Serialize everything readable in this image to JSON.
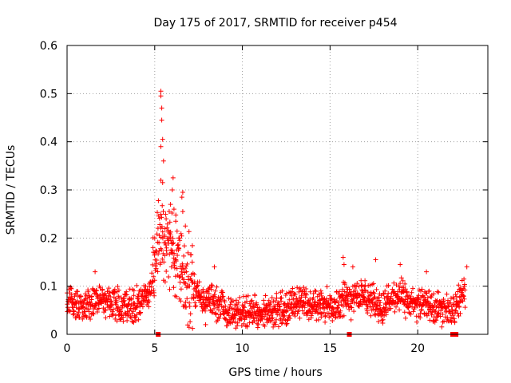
{
  "chart_data": {
    "type": "scatter",
    "title": "Day 175 of 2017, SRMTID for receiver p454",
    "xlabel": "GPS time / hours",
    "ylabel": "SRMTID / TECUs",
    "xlim": [
      0,
      24
    ],
    "ylim": [
      0,
      0.6
    ],
    "xticks": [
      0,
      5,
      10,
      15,
      20
    ],
    "xtick_labels": [
      "0",
      "5",
      "10",
      "15",
      "20"
    ],
    "yticks": [
      0,
      0.1,
      0.2,
      0.3,
      0.4,
      0.5,
      0.6
    ],
    "ytick_labels": [
      "0",
      "0.1",
      "0.2",
      "0.3",
      "0.4",
      "0.5",
      "0.6"
    ],
    "grid": true,
    "marker_color": "#ff0000",
    "data_coverage_hours": [
      0,
      22.7
    ],
    "gap_markers_x": [
      5.2,
      16.1,
      22.0
    ],
    "peaks": [
      {
        "x": 5.35,
        "y": 0.505
      },
      {
        "x": 5.35,
        "y": 0.495
      },
      {
        "x": 5.4,
        "y": 0.47
      },
      {
        "x": 5.4,
        "y": 0.445
      },
      {
        "x": 5.45,
        "y": 0.405
      },
      {
        "x": 5.35,
        "y": 0.39
      },
      {
        "x": 5.5,
        "y": 0.36
      },
      {
        "x": 6.05,
        "y": 0.325
      },
      {
        "x": 5.35,
        "y": 0.32
      },
      {
        "x": 5.45,
        "y": 0.315
      },
      {
        "x": 6.0,
        "y": 0.3
      },
      {
        "x": 6.6,
        "y": 0.295
      },
      {
        "x": 6.55,
        "y": 0.285
      },
      {
        "x": 5.9,
        "y": 0.27
      },
      {
        "x": 6.1,
        "y": 0.26
      },
      {
        "x": 6.6,
        "y": 0.255
      },
      {
        "x": 5.65,
        "y": 0.24
      },
      {
        "x": 6.2,
        "y": 0.235
      },
      {
        "x": 6.75,
        "y": 0.225
      },
      {
        "x": 5.0,
        "y": 0.2
      },
      {
        "x": 5.85,
        "y": 0.21
      },
      {
        "x": 6.4,
        "y": 0.2
      },
      {
        "x": 4.9,
        "y": 0.18
      },
      {
        "x": 1.6,
        "y": 0.13
      },
      {
        "x": 8.4,
        "y": 0.14
      },
      {
        "x": 15.75,
        "y": 0.16
      },
      {
        "x": 15.8,
        "y": 0.145
      },
      {
        "x": 16.3,
        "y": 0.14
      },
      {
        "x": 17.6,
        "y": 0.155
      },
      {
        "x": 19.0,
        "y": 0.145
      },
      {
        "x": 20.5,
        "y": 0.13
      },
      {
        "x": 22.8,
        "y": 0.14
      },
      {
        "x": 10.9,
        "y": 0.02
      },
      {
        "x": 3.8,
        "y": 0.025
      },
      {
        "x": 7.9,
        "y": 0.02
      },
      {
        "x": 16.2,
        "y": 0.03
      },
      {
        "x": 12.5,
        "y": 0.02
      }
    ],
    "baseline_profile": [
      {
        "x": 0.0,
        "y": 0.075
      },
      {
        "x": 0.5,
        "y": 0.06
      },
      {
        "x": 1.0,
        "y": 0.055
      },
      {
        "x": 1.5,
        "y": 0.07
      },
      {
        "x": 2.0,
        "y": 0.075
      },
      {
        "x": 2.5,
        "y": 0.065
      },
      {
        "x": 3.0,
        "y": 0.06
      },
      {
        "x": 3.5,
        "y": 0.06
      },
      {
        "x": 4.0,
        "y": 0.065
      },
      {
        "x": 4.5,
        "y": 0.08
      },
      {
        "x": 4.8,
        "y": 0.1
      },
      {
        "x": 5.0,
        "y": 0.14
      },
      {
        "x": 5.3,
        "y": 0.2
      },
      {
        "x": 5.6,
        "y": 0.2
      },
      {
        "x": 6.0,
        "y": 0.17
      },
      {
        "x": 6.5,
        "y": 0.15
      },
      {
        "x": 7.0,
        "y": 0.1
      },
      {
        "x": 7.5,
        "y": 0.08
      },
      {
        "x": 8.0,
        "y": 0.07
      },
      {
        "x": 8.5,
        "y": 0.065
      },
      {
        "x": 9.0,
        "y": 0.05
      },
      {
        "x": 9.5,
        "y": 0.045
      },
      {
        "x": 10.0,
        "y": 0.045
      },
      {
        "x": 10.5,
        "y": 0.05
      },
      {
        "x": 11.0,
        "y": 0.05
      },
      {
        "x": 11.5,
        "y": 0.045
      },
      {
        "x": 12.0,
        "y": 0.05
      },
      {
        "x": 12.5,
        "y": 0.055
      },
      {
        "x": 13.0,
        "y": 0.065
      },
      {
        "x": 13.5,
        "y": 0.065
      },
      {
        "x": 14.0,
        "y": 0.06
      },
      {
        "x": 14.5,
        "y": 0.06
      },
      {
        "x": 15.0,
        "y": 0.06
      },
      {
        "x": 15.5,
        "y": 0.065
      },
      {
        "x": 16.0,
        "y": 0.08
      },
      {
        "x": 16.5,
        "y": 0.085
      },
      {
        "x": 17.0,
        "y": 0.075
      },
      {
        "x": 17.5,
        "y": 0.07
      },
      {
        "x": 18.0,
        "y": 0.055
      },
      {
        "x": 18.5,
        "y": 0.075
      },
      {
        "x": 19.0,
        "y": 0.08
      },
      {
        "x": 19.5,
        "y": 0.065
      },
      {
        "x": 20.0,
        "y": 0.06
      },
      {
        "x": 20.5,
        "y": 0.065
      },
      {
        "x": 21.0,
        "y": 0.055
      },
      {
        "x": 21.5,
        "y": 0.05
      },
      {
        "x": 22.0,
        "y": 0.045
      },
      {
        "x": 22.4,
        "y": 0.075
      },
      {
        "x": 22.7,
        "y": 0.09
      }
    ]
  }
}
